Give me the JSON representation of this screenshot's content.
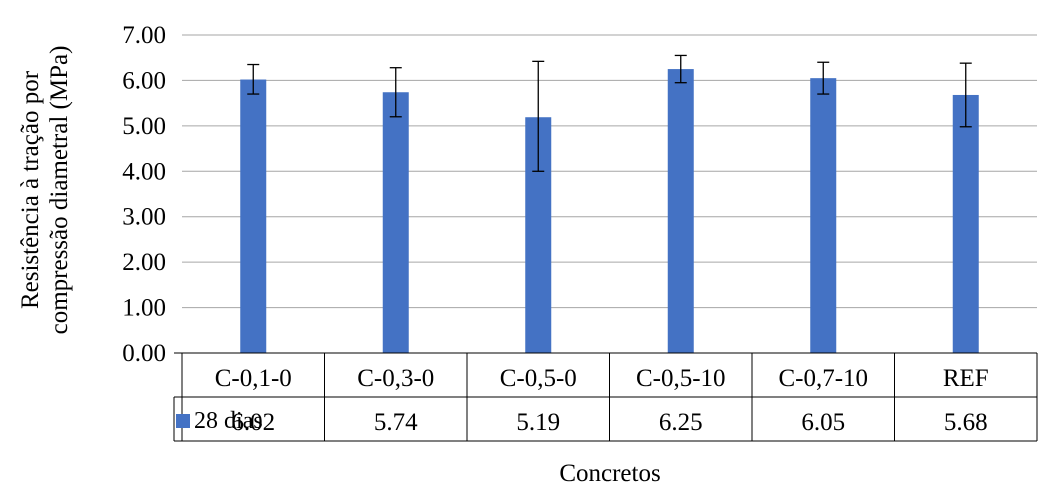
{
  "chart_data": {
    "type": "bar",
    "categories": [
      "C-0,1-0",
      "C-0,3-0",
      "C-0,5-0",
      "C-0,5-10",
      "C-0,7-10",
      "REF"
    ],
    "series": [
      {
        "name": "28 dias",
        "values": [
          6.02,
          5.74,
          5.19,
          6.25,
          6.05,
          5.68
        ],
        "value_labels": [
          "6.02",
          "5.74",
          "5.19",
          "6.25",
          "6.05",
          "5.68"
        ],
        "error_low": [
          5.7,
          5.2,
          4.0,
          5.95,
          5.7,
          4.98
        ],
        "error_high": [
          6.35,
          6.28,
          6.42,
          6.55,
          6.4,
          6.38
        ],
        "color": "#4472C4"
      }
    ],
    "ylabel_lines": [
      "Resistência à tração por",
      "compressão diametral (MPa)"
    ],
    "xlabel": "Concretos",
    "ylim": [
      0,
      7
    ],
    "yticks": [
      "0.00",
      "1.00",
      "2.00",
      "3.00",
      "4.00",
      "5.00",
      "6.00",
      "7.00"
    ],
    "grid": true,
    "legend": "data-table",
    "colors": {
      "grid": "#A6A6A6",
      "axis": "#000000"
    }
  }
}
